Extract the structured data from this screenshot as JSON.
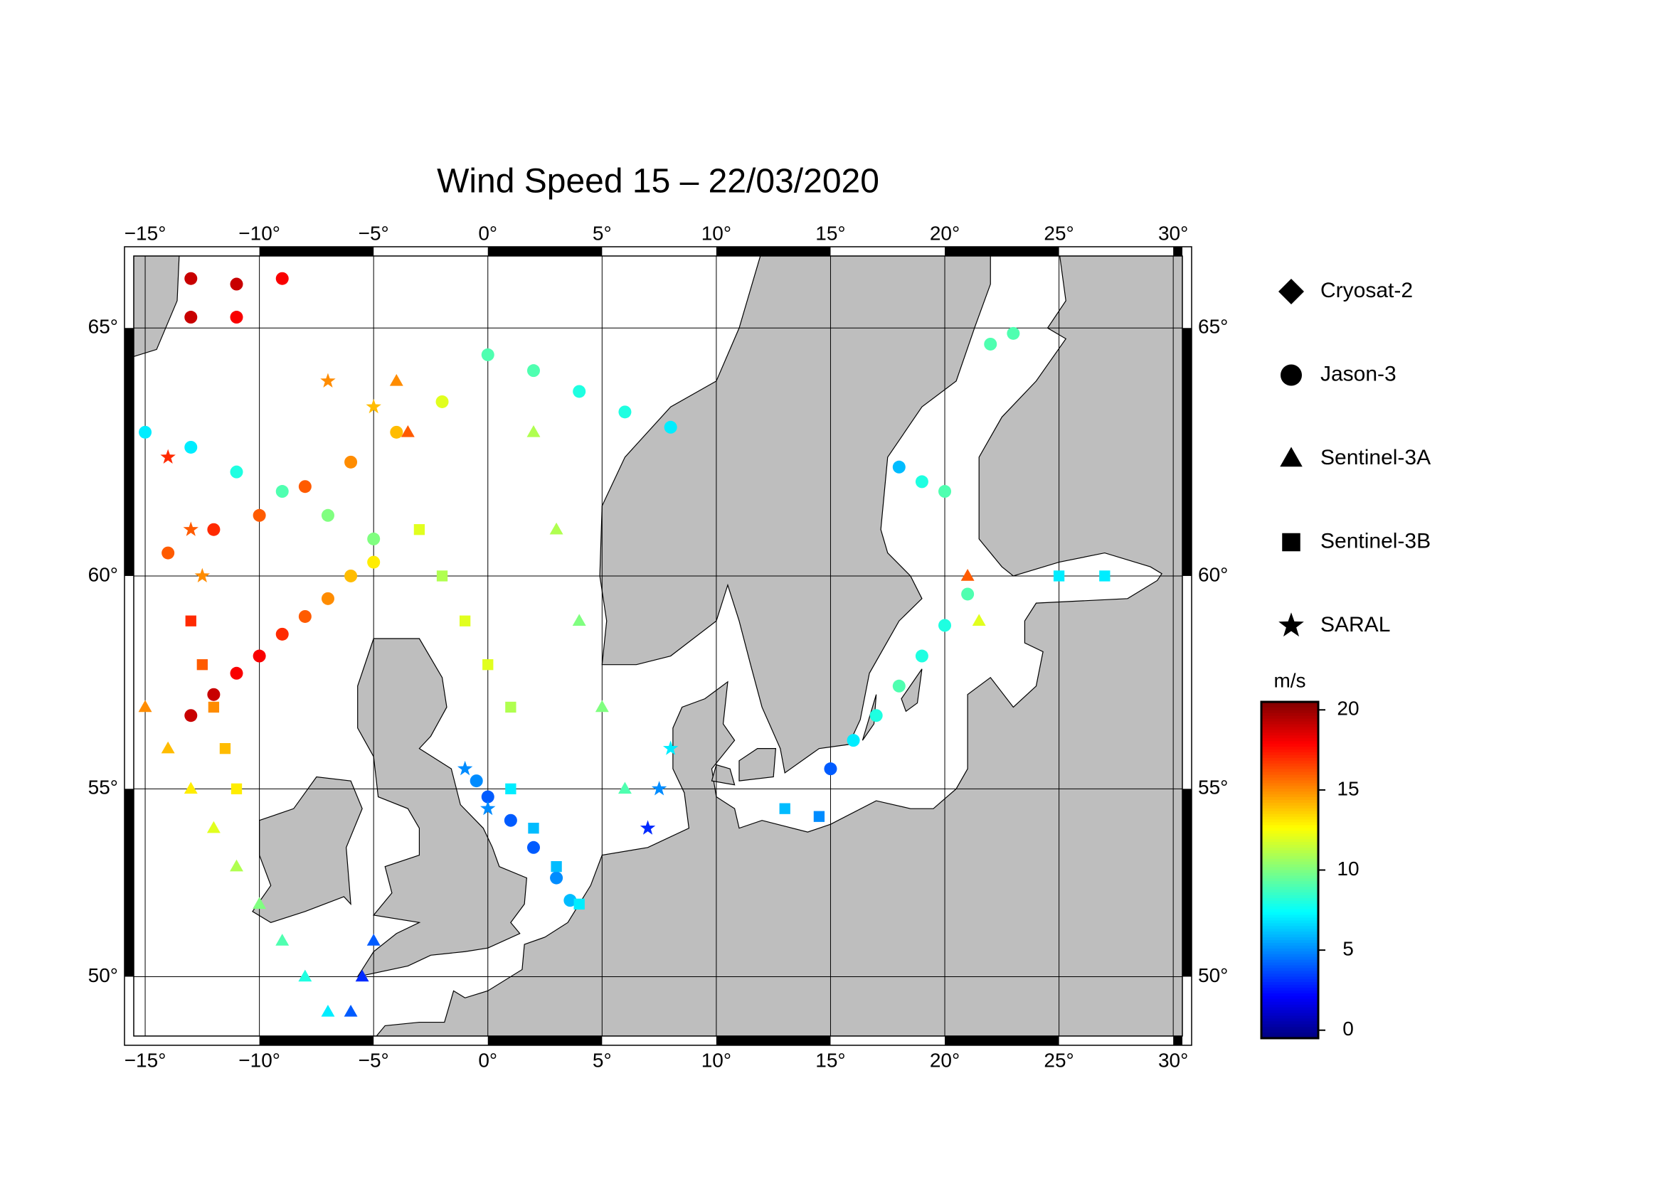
{
  "chart_data": {
    "type": "map",
    "title": "Wind Speed 15 – 22/03/2020",
    "projection": "mercator",
    "xlim": [
      -15.5,
      30.4
    ],
    "ylim": [
      48.3,
      66.3
    ],
    "xticks": [
      {
        "value": -15,
        "label": "−15°"
      },
      {
        "value": -10,
        "label": "−10°"
      },
      {
        "value": -5,
        "label": "−5°"
      },
      {
        "value": 0,
        "label": "0°"
      },
      {
        "value": 5,
        "label": "5°"
      },
      {
        "value": 10,
        "label": "10°"
      },
      {
        "value": 15,
        "label": "15°"
      },
      {
        "value": 20,
        "label": "20°"
      },
      {
        "value": 25,
        "label": "25°"
      },
      {
        "value": 30,
        "label": "30°"
      }
    ],
    "yticks": [
      {
        "value": 50,
        "label": "50°"
      },
      {
        "value": 55,
        "label": "55°"
      },
      {
        "value": 60,
        "label": "60°"
      },
      {
        "value": 65,
        "label": "65°"
      }
    ],
    "grid": true,
    "colormap": "jet",
    "series": [
      {
        "name": "Cryosat-2",
        "marker": "diamond",
        "points": []
      },
      {
        "name": "Jason-3",
        "marker": "circle",
        "points": [
          [
            -13,
            56.8,
            19
          ],
          [
            -12,
            57.3,
            19
          ],
          [
            -11,
            57.8,
            18
          ],
          [
            -10,
            58.2,
            18
          ],
          [
            -9,
            58.7,
            17
          ],
          [
            -8,
            59.1,
            16
          ],
          [
            -7,
            59.5,
            15
          ],
          [
            -6,
            60,
            14
          ],
          [
            -5,
            60.3,
            13
          ],
          [
            -0.5,
            55.2,
            5
          ],
          [
            0,
            54.8,
            4
          ],
          [
            1,
            54.2,
            4
          ],
          [
            2,
            53.5,
            4
          ],
          [
            3,
            52.7,
            5
          ],
          [
            3.6,
            52.1,
            6
          ],
          [
            15,
            55.5,
            4
          ],
          [
            16,
            56.2,
            7
          ],
          [
            17,
            56.8,
            8
          ],
          [
            18,
            57.5,
            9
          ],
          [
            19,
            58.2,
            8
          ],
          [
            20,
            58.9,
            8
          ],
          [
            21,
            59.6,
            9
          ],
          [
            -15,
            63,
            7
          ],
          [
            -13,
            62.7,
            7
          ],
          [
            -11,
            62.2,
            8
          ],
          [
            -9,
            61.8,
            9
          ],
          [
            -7,
            61.3,
            10
          ],
          [
            -5,
            60.8,
            10
          ],
          [
            -14,
            60.5,
            16
          ],
          [
            -12,
            61,
            17
          ],
          [
            -10,
            61.3,
            16
          ],
          [
            -8,
            61.9,
            16
          ],
          [
            -6,
            62.4,
            15
          ],
          [
            -4,
            63,
            14
          ],
          [
            -2,
            63.6,
            12
          ],
          [
            -13,
            65.9,
            19
          ],
          [
            -11,
            65.8,
            19
          ],
          [
            -9,
            65.9,
            18
          ],
          [
            -13,
            65.2,
            19
          ],
          [
            -11,
            65.2,
            18
          ],
          [
            0,
            64.5,
            9
          ],
          [
            2,
            64.2,
            9
          ],
          [
            4,
            63.8,
            8
          ],
          [
            6,
            63.4,
            8
          ],
          [
            8,
            63.1,
            7
          ],
          [
            18,
            62.3,
            6
          ],
          [
            19,
            62,
            8
          ],
          [
            20,
            61.8,
            9
          ],
          [
            22,
            64.7,
            9
          ],
          [
            23,
            64.9,
            9
          ]
        ]
      },
      {
        "name": "Sentinel-3A",
        "marker": "triangle",
        "points": [
          [
            -15,
            57,
            15
          ],
          [
            -14,
            56,
            14
          ],
          [
            -13,
            55,
            13
          ],
          [
            -12,
            54,
            12
          ],
          [
            -11,
            53,
            11
          ],
          [
            -10,
            52,
            10
          ],
          [
            -9,
            51,
            9
          ],
          [
            -8,
            50,
            8
          ],
          [
            -7,
            49,
            7
          ],
          [
            -5,
            51,
            4
          ],
          [
            -5.5,
            50,
            3
          ],
          [
            -6,
            49,
            4
          ],
          [
            2,
            63,
            11
          ],
          [
            3,
            61,
            11
          ],
          [
            4,
            59,
            10
          ],
          [
            5,
            57,
            10
          ],
          [
            6,
            55,
            9
          ],
          [
            21,
            60,
            16
          ],
          [
            21.5,
            59,
            12
          ],
          [
            -4,
            64,
            15
          ],
          [
            -3.5,
            63,
            16
          ]
        ]
      },
      {
        "name": "Sentinel-3B",
        "marker": "square",
        "points": [
          [
            -13,
            59,
            17
          ],
          [
            -12.5,
            58,
            16
          ],
          [
            -12,
            57,
            15
          ],
          [
            -11.5,
            56,
            14
          ],
          [
            -11,
            55,
            13
          ],
          [
            1,
            55,
            7
          ],
          [
            2,
            54,
            6
          ],
          [
            3,
            53,
            6
          ],
          [
            4,
            52,
            7
          ],
          [
            27,
            60,
            7
          ],
          [
            25,
            60,
            7
          ],
          [
            13,
            54.5,
            6
          ],
          [
            14.5,
            54.3,
            5
          ],
          [
            -3,
            61,
            12
          ],
          [
            -2,
            60,
            11
          ],
          [
            -1,
            59,
            12
          ],
          [
            0,
            58,
            12
          ],
          [
            1,
            57,
            11
          ]
        ]
      },
      {
        "name": "SARAL",
        "marker": "star",
        "points": [
          [
            -14,
            62.5,
            17
          ],
          [
            -13,
            61,
            16
          ],
          [
            -12.5,
            60,
            15
          ],
          [
            -1,
            55.5,
            5
          ],
          [
            0,
            54.5,
            5
          ],
          [
            7,
            54,
            3
          ],
          [
            7.5,
            55,
            5
          ],
          [
            8,
            56,
            7
          ],
          [
            -7,
            64,
            15
          ],
          [
            -5,
            63.5,
            14
          ]
        ]
      }
    ],
    "colorbar": {
      "label": "m/s",
      "lim": [
        -0.5,
        20.5
      ],
      "ticks": [
        0,
        5,
        10,
        15,
        20
      ]
    }
  }
}
